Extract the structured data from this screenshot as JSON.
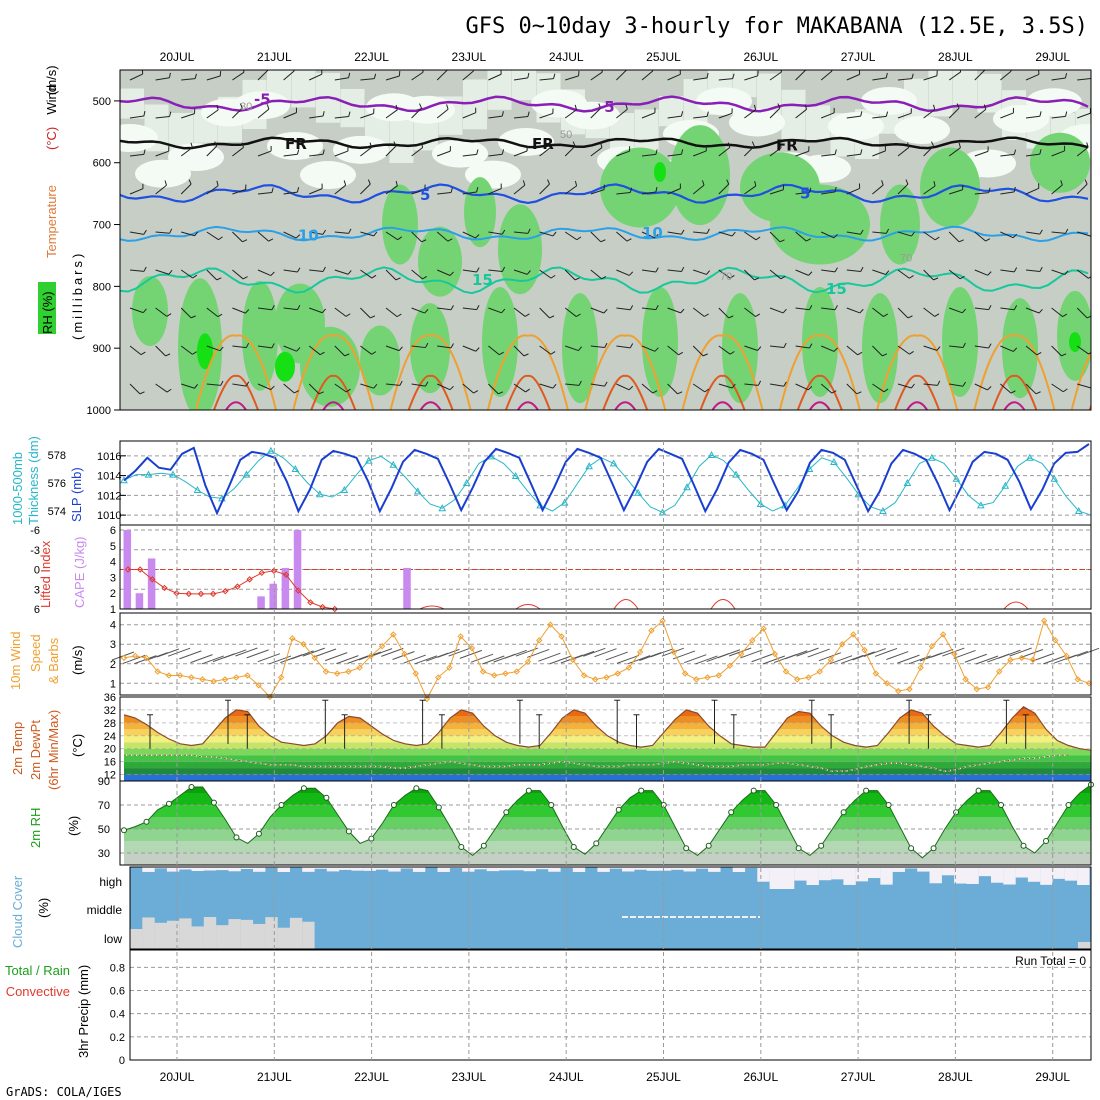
{
  "title": "GFS 0~10day 3-hourly for MAKABANA (12.5E, 3.5S)",
  "footer": "GrADS: COLA/IGES",
  "run_total": "Run Total = 0",
  "dates": [
    "20JUL",
    "21JUL",
    "22JUL",
    "23JUL",
    "24JUL",
    "25JUL",
    "26JUL",
    "27JUL",
    "28JUL",
    "29JUL"
  ],
  "colors": {
    "rh_dark": "#c6cec6",
    "rh_light": "#e8f2e8",
    "rh_green": "#74d474",
    "rh_bright": "#14e014",
    "slp": "#1a3fd0",
    "thickness": "#27b7c8",
    "li": "#e0392d",
    "cape": "#c98af0",
    "wind10": "#f0a030",
    "cloud": "#6badd6",
    "temp_line": "#8a4a2a",
    "rh_line": "#1a6a1a"
  },
  "labels": {
    "panel1": [
      "Wind",
      "(m/s)",
      "Temperature",
      "(°C)",
      "RH (%)",
      "(millibars)"
    ],
    "panel2": [
      "1000-500mb",
      "Thickness (dm)",
      "SLP (mb)"
    ],
    "panel3": [
      "Lifted Index",
      "CAPE (J/kg)"
    ],
    "panel4": [
      "10m Wind",
      "Speed",
      "& Barbs",
      "(m/s)"
    ],
    "panel5": [
      "2m Temp",
      "2m DewPt",
      "(6hr Min/Max)",
      "(°C)"
    ],
    "panel6": [
      "2m RH",
      "(%)"
    ],
    "panel7": [
      "Cloud Cover",
      "(%)"
    ],
    "panel8": [
      "Total / Rain",
      "Convective",
      "3hr Precip (mm)"
    ]
  },
  "cloud_levels": [
    "high",
    "middle",
    "low"
  ],
  "chart_data": [
    {
      "type": "heatmap",
      "panel": "pressure-time cross-section",
      "y_ticks": [
        "500",
        "600",
        "700",
        "800",
        "900",
        "1000"
      ],
      "ylim": [
        450,
        1000
      ],
      "isotherm_labels": [
        "-5",
        "FR",
        "5",
        "10",
        "15"
      ],
      "rh_contour_labels": [
        "10",
        "30",
        "50",
        "70"
      ]
    },
    {
      "type": "line",
      "panel": "slp-thickness",
      "slp_ticks": [
        "1010",
        "1012",
        "1014",
        "1016"
      ],
      "thickness_ticks": [
        "574",
        "576",
        "578"
      ],
      "series": [
        {
          "name": "SLP (mb)",
          "axis": "right",
          "ylim": [
            1009,
            1017.5
          ],
          "values": [
            1013.5,
            1014.5,
            1015.8,
            1014.8,
            1014.6,
            1016.2,
            1016.8,
            1013,
            1010.2,
            1012.8,
            1015.6,
            1016.4,
            1016.2,
            1015.8,
            1013.4,
            1010.4,
            1012.6,
            1015.6,
            1016.5,
            1016.2,
            1015.8,
            1013.4,
            1010.4,
            1012.7,
            1015.4,
            1016.6,
            1016.2,
            1015.7,
            1013.2,
            1010.5,
            1012.8,
            1015.4,
            1016.7,
            1016.3,
            1015.8,
            1013.2,
            1010.5,
            1012.8,
            1015.4,
            1016.7,
            1016.3,
            1015.8,
            1013.2,
            1010.5,
            1012.8,
            1015.4,
            1016.7,
            1016.2,
            1015.7,
            1013.1,
            1010.4,
            1012.6,
            1015.3,
            1016.6,
            1016.2,
            1015.6,
            1013.0,
            1010.5,
            1012.4,
            1015.3,
            1016.6,
            1016.3,
            1015.6,
            1013,
            1010.4,
            1012.4,
            1015.2,
            1016.6,
            1016.2,
            1015.6,
            1013.2,
            1010.5,
            1012.8,
            1015.4,
            1016.4,
            1016.2,
            1015.6,
            1013.4,
            1010.6,
            1012.6,
            1015.2,
            1016.3,
            1016.4,
            1017.2
          ]
        },
        {
          "name": "1000-500mb Thickness (dm)",
          "axis": "left",
          "ylim": [
            573,
            579
          ],
          "values": [
            576.2,
            576.6,
            576.6,
            576.7,
            576.6,
            576.1,
            575.5,
            575,
            574.9,
            575.6,
            576.6,
            577.6,
            578.3,
            577.8,
            577.0,
            576.0,
            575.2,
            575.0,
            575.5,
            576.6,
            577.6,
            577.9,
            577.3,
            576.4,
            575.4,
            574.5,
            574.2,
            574.8,
            576.0,
            577.4,
            577.9,
            577.4,
            576.5,
            575.4,
            574.4,
            574.0,
            574.6,
            575.9,
            577.2,
            577.8,
            577.4,
            576.4,
            575.3,
            574.3,
            573.9,
            574.4,
            575.7,
            577.2,
            578.0,
            577.6,
            576.6,
            575.5,
            574.5,
            574.0,
            574.4,
            575.6,
            577.0,
            577.8,
            577.5,
            576.4,
            575.2,
            574.3,
            574.0,
            574.6,
            576.0,
            577.4,
            577.8,
            577.4,
            576.3,
            575.1,
            574.4,
            574.6,
            575.8,
            577.2,
            577.8,
            577.4,
            576.3,
            575.0,
            574.0,
            573.7
          ]
        }
      ]
    },
    {
      "type": "bar",
      "panel": "lifted-index-cape",
      "li_ticks": [
        "6",
        "3",
        "0",
        "-3",
        "-6"
      ],
      "cape_ticks": [
        "1",
        "2",
        "3",
        "4",
        "5",
        "6"
      ],
      "li_ylim": [
        6,
        -6
      ],
      "cape_ylim": [
        1,
        6
      ],
      "cape_bars": [
        [
          0,
          6
        ],
        [
          1,
          2
        ],
        [
          2,
          4.2
        ],
        [
          11,
          1.8
        ],
        [
          12,
          2.6
        ],
        [
          13,
          3.6
        ],
        [
          14,
          6
        ],
        [
          23,
          3.6
        ]
      ],
      "li_points": [
        [
          0,
          0
        ],
        [
          1,
          0
        ],
        [
          2,
          1.5
        ],
        [
          3,
          2.8
        ],
        [
          4,
          3.6
        ],
        [
          5,
          3.7
        ],
        [
          6,
          3.7
        ],
        [
          7,
          3.7
        ],
        [
          8,
          3.3
        ],
        [
          9,
          2.6
        ],
        [
          10,
          1.5
        ],
        [
          11,
          0.5
        ],
        [
          12,
          0.2
        ],
        [
          13,
          0.8
        ],
        [
          14,
          3.2
        ],
        [
          15,
          5.0
        ],
        [
          16,
          5.7
        ],
        [
          17,
          6
        ]
      ]
    },
    {
      "type": "line",
      "panel": "10m-wind",
      "y_ticks": [
        "1",
        "2",
        "3",
        "4"
      ],
      "ylim": [
        0.4,
        4.6
      ],
      "series": [
        {
          "name": "10m Wind Speed",
          "values": [
            2.3,
            2.4,
            2.3,
            1.6,
            1.4,
            1.4,
            1.3,
            1.2,
            1.1,
            1.2,
            1.3,
            1.4,
            0.9,
            0.3,
            1.3,
            3.3,
            3.0,
            2.3,
            1.6,
            1.5,
            1.6,
            1.8,
            2.4,
            2.9,
            3.5,
            2.5,
            1.5,
            0.2,
            1.3,
            1.8,
            3.4,
            2.8,
            1.6,
            1.4,
            1.5,
            1.6,
            2.1,
            3.2,
            4.0,
            3.4,
            2.2,
            1.4,
            1.2,
            1.3,
            1.5,
            1.8,
            2.6,
            3.7,
            4.2,
            2.6,
            1.5,
            1.2,
            1.3,
            1.4,
            1.9,
            2.5,
            3.2,
            3.8,
            2.5,
            1.6,
            1.2,
            1.3,
            1.6,
            2.2,
            3.0,
            3.5,
            2.7,
            1.5,
            1.0,
            0.6,
            0.7,
            1.8,
            2.9,
            3.5,
            2.5,
            1.2,
            0.7,
            0.8,
            1.6,
            2.2,
            2.3,
            2.2,
            4.2,
            3.2,
            2.4,
            1.2,
            1.0
          ]
        }
      ]
    },
    {
      "type": "area",
      "panel": "2m-temperature",
      "y_ticks": [
        "12",
        "16",
        "20",
        "24",
        "28",
        "32",
        "36"
      ],
      "ylim": [
        10,
        36
      ],
      "series": [
        {
          "name": "2m Temp",
          "values": [
            30.5,
            29.5,
            27.5,
            25,
            23,
            21.5,
            21,
            21.5,
            25.5,
            29.5,
            32,
            31.5,
            27,
            24,
            22,
            21.5,
            21,
            21.5,
            24,
            28,
            30,
            29.5,
            27,
            24.5,
            22.5,
            21.5,
            21,
            21.5,
            25,
            29.5,
            32,
            31,
            27,
            24,
            22,
            21,
            20.5,
            21,
            25,
            29.5,
            32,
            31,
            27,
            24,
            22,
            21,
            20.5,
            21,
            25,
            29,
            32,
            31,
            27,
            24,
            21.5,
            21,
            20.5,
            20.5,
            25,
            29.5,
            31.5,
            31,
            27,
            24,
            22,
            21,
            20.5,
            21,
            25,
            29.5,
            32,
            31,
            27,
            24,
            21.5,
            21,
            20.5,
            21,
            25,
            29.5,
            33,
            31,
            26,
            22.5,
            21,
            20,
            19.5
          ]
        },
        {
          "name": "2m DewPt",
          "values": [
            18,
            18,
            18,
            18,
            18,
            18,
            18,
            17.5,
            17.5,
            17,
            16.5,
            16,
            15.5,
            15,
            15,
            15,
            14.5,
            14.5,
            14.5,
            14.5,
            14.5,
            14.5,
            14.5,
            14.5,
            14,
            14,
            14.5,
            15,
            15.5,
            16,
            15.5,
            15,
            14.5,
            14.5,
            14.5,
            15,
            15,
            15,
            15.5,
            16,
            15.5,
            15,
            14.5,
            14.5,
            14.5,
            15,
            15,
            15,
            15.5,
            16,
            15.5,
            15,
            14.5,
            14.5,
            14.5,
            15,
            15,
            15,
            15.5,
            15.5,
            15,
            14.5,
            14,
            13,
            13,
            13.5,
            14.5,
            15,
            15.5,
            15.5,
            15,
            14.5,
            14,
            13,
            13.5,
            14.5,
            15,
            15.5,
            16,
            16.5,
            17,
            17,
            17.5,
            18,
            18
          ]
        }
      ]
    },
    {
      "type": "area",
      "panel": "2m-rh",
      "y_ticks": [
        "30",
        "50",
        "70",
        "90"
      ],
      "ylim": [
        20,
        90
      ],
      "series": [
        {
          "name": "2m RH",
          "values": [
            49,
            52,
            56,
            66,
            71,
            78,
            85,
            85,
            72,
            58,
            43,
            38,
            46,
            60,
            70,
            78,
            84,
            84,
            76,
            62,
            48,
            38,
            42,
            55,
            70,
            78,
            84,
            82,
            68,
            52,
            35,
            28,
            36,
            50,
            64,
            74,
            82,
            82,
            70,
            52,
            35,
            29,
            38,
            52,
            66,
            76,
            82,
            82,
            70,
            52,
            34,
            28,
            36,
            50,
            64,
            74,
            82,
            82,
            70,
            52,
            34,
            28,
            36,
            50,
            64,
            74,
            82,
            82,
            70,
            52,
            34,
            26,
            34,
            50,
            64,
            74,
            82,
            82,
            70,
            52,
            36,
            30,
            40,
            55,
            70,
            80,
            87
          ]
        }
      ]
    }
  ]
}
